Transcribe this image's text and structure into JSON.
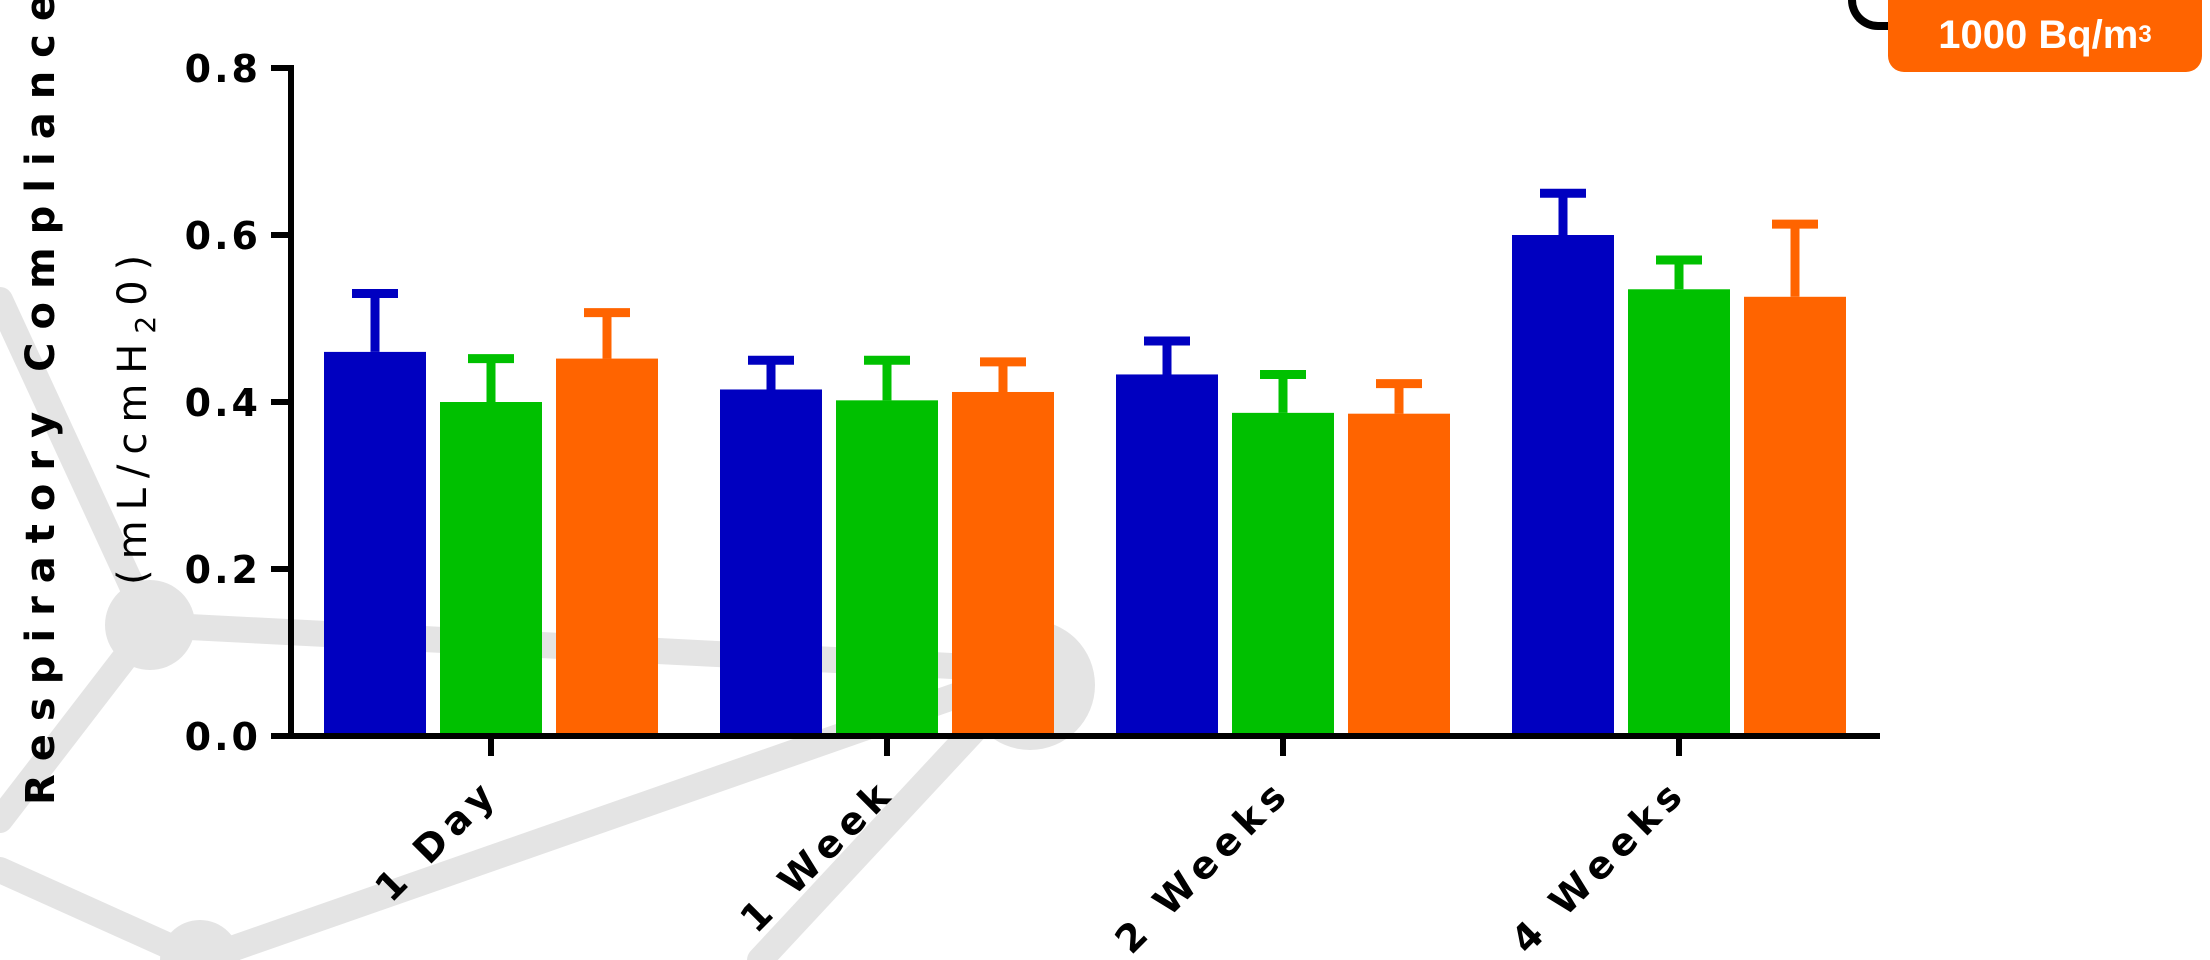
{
  "chart_data": {
    "type": "bar",
    "ylabel_line1": "Respiratory Compliance",
    "ylabel_line2": "(mL/cmH",
    "ylabel_sub": "2",
    "ylabel_end": "0)",
    "ylim": [
      0,
      0.8
    ],
    "yticks": [
      "0.0",
      "0.2",
      "0.4",
      "0.6",
      "0.8"
    ],
    "categories": [
      "1 Day",
      "1 Week",
      "2 Weeks",
      "4 Weeks"
    ],
    "series": [
      {
        "color": "#0000c0",
        "values": [
          0.46,
          0.415,
          0.433,
          0.6
        ],
        "errors": [
          0.07,
          0.035,
          0.04,
          0.05
        ]
      },
      {
        "color": "#00c000",
        "values": [
          0.4,
          0.402,
          0.387,
          0.535
        ],
        "errors": [
          0.052,
          0.048,
          0.046,
          0.035
        ]
      },
      {
        "name": "1000 Bq/m³",
        "color": "#ff6400",
        "values": [
          0.452,
          0.412,
          0.386,
          0.526
        ],
        "errors": [
          0.055,
          0.036,
          0.036,
          0.087
        ]
      }
    ],
    "grid": false
  },
  "legend": {
    "badge_text": "1000 Bq/m",
    "badge_sup": "3",
    "badge_color": "#ff6400"
  }
}
